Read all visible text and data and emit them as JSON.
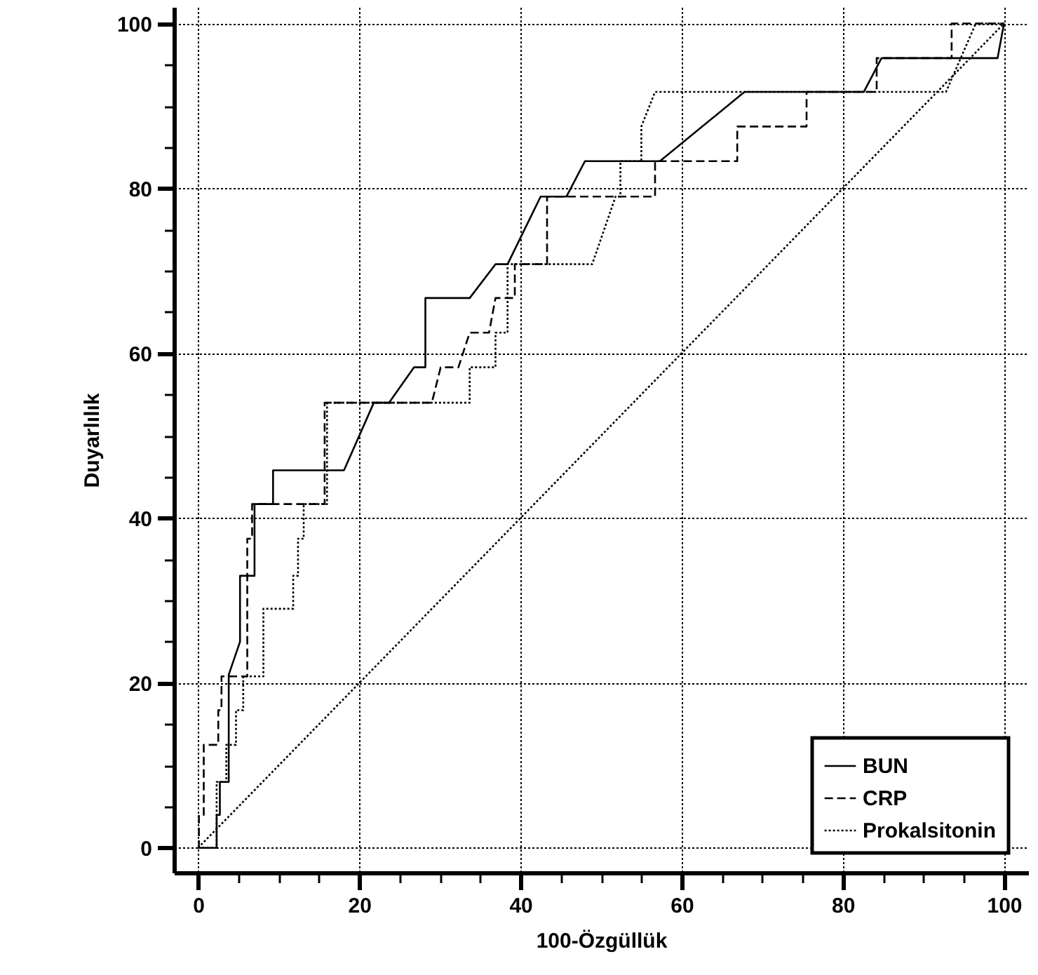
{
  "chart_data": {
    "type": "line",
    "xlabel": "100-Özgüllük",
    "ylabel": "Duyarlılık",
    "xlim": [
      -3,
      103
    ],
    "ylim": [
      -3,
      102
    ],
    "xticks": [
      0,
      {
        "value": 5,
        "label": null
      },
      {
        "value": 10,
        "label": null
      },
      {
        "value": 15,
        "label": null
      },
      20,
      {
        "value": 25,
        "label": null
      },
      {
        "value": 30,
        "label": null
      },
      {
        "value": 35,
        "label": null
      },
      40,
      {
        "value": 45,
        "label": null
      },
      {
        "value": 50,
        "label": null
      },
      {
        "value": 55,
        "label": null
      },
      60,
      {
        "value": 65,
        "label": null
      },
      {
        "value": 70,
        "label": null
      },
      {
        "value": 75,
        "label": null
      },
      80,
      {
        "value": 85,
        "label": null
      },
      {
        "value": 90,
        "label": null
      },
      {
        "value": 95,
        "label": null
      },
      100
    ],
    "yticks": [
      0,
      {
        "value": 5,
        "label": null
      },
      {
        "value": 10,
        "label": null
      },
      {
        "value": 15,
        "label": null
      },
      20,
      {
        "value": 25,
        "label": null
      },
      {
        "value": 30,
        "label": null
      },
      {
        "value": 35,
        "label": null
      },
      40,
      {
        "value": 45,
        "label": null
      },
      {
        "value": 50,
        "label": null
      },
      {
        "value": 55,
        "label": null
      },
      60,
      {
        "value": 65,
        "label": null
      },
      {
        "value": 70,
        "label": null
      },
      {
        "value": 75,
        "label": null
      },
      80,
      {
        "value": 85,
        "label": null
      },
      {
        "value": 90,
        "label": null
      },
      {
        "value": 95,
        "label": null
      },
      100
    ],
    "grid": true,
    "legend": "bottom right",
    "marker": "none",
    "series": [
      {
        "name": "BUN",
        "color": "#000000",
        "line_style": "solid",
        "x": [
          0,
          2.3,
          2.3,
          2.7,
          2.7,
          3.8,
          3.8,
          5.2,
          5.2,
          7,
          7,
          9.3,
          9.3,
          18.1,
          20,
          21.8,
          23.7,
          26.8,
          28.2,
          28.2,
          33.7,
          36.9,
          38.4,
          42.5,
          45.7,
          48,
          57.3,
          67.8,
          82.6,
          84.8,
          99.2,
          100
        ],
        "values": [
          0,
          0,
          4,
          4,
          8,
          8,
          21,
          25,
          33,
          33,
          41.7,
          41.7,
          45.8,
          45.8,
          50,
          54,
          54,
          58.3,
          58.3,
          66.7,
          66.7,
          70.8,
          70.8,
          79,
          79,
          83.3,
          83.3,
          91.7,
          91.7,
          95.8,
          95.8,
          100
        ]
      },
      {
        "name": "CRP",
        "color": "#000000",
        "line_style": "dashed",
        "x": [
          0,
          0.1,
          0.1,
          0.7,
          0.7,
          2.5,
          2.5,
          2.9,
          2.9,
          6.1,
          6.1,
          6.7,
          6.7,
          15.7,
          15.7,
          29,
          30.1,
          32.3,
          33.7,
          36.1,
          36.9,
          39.3,
          39.3,
          43.3,
          43.3,
          56.7,
          56.7,
          66.9,
          66.9,
          75.5,
          75.5,
          84.2,
          84.2,
          93.5,
          93.5,
          100
        ],
        "values": [
          0,
          0,
          4,
          4,
          12.5,
          12.5,
          16.7,
          16.7,
          20.8,
          20.8,
          37.5,
          37.5,
          41.7,
          41.7,
          54,
          54,
          58.3,
          58.3,
          62.5,
          62.5,
          66.7,
          66.7,
          70.8,
          70.8,
          79,
          79,
          83.3,
          83.3,
          87.5,
          87.5,
          91.7,
          91.7,
          95.8,
          95.8,
          100,
          100
        ]
      },
      {
        "name": "Prokalsitonin",
        "color": "#000000",
        "line_style": "dotted",
        "x": [
          0,
          2.3,
          2.3,
          3.5,
          3.5,
          4.7,
          4.7,
          5.6,
          5.6,
          8.1,
          8.1,
          11.8,
          11.8,
          12.4,
          12.4,
          13.1,
          13.1,
          16,
          16,
          33.7,
          33.7,
          36.9,
          36.9,
          38.4,
          38.4,
          48.9,
          51.8,
          52.4,
          52.4,
          55,
          55,
          56.7,
          92.8,
          96.5,
          100
        ],
        "values": [
          0,
          0,
          8,
          8,
          12.5,
          12.5,
          16.7,
          16.7,
          20.8,
          20.8,
          29,
          29,
          33,
          33,
          37.5,
          37.5,
          41.7,
          41.7,
          54,
          54,
          58.3,
          58.3,
          62.5,
          62.5,
          70.8,
          70.8,
          79,
          79,
          83.3,
          83.3,
          87.5,
          91.7,
          91.7,
          100,
          100
        ]
      },
      {
        "color": "#000000",
        "line_style": "dotted",
        "x": [
          0,
          100
        ],
        "values": [
          0,
          100
        ]
      }
    ]
  }
}
